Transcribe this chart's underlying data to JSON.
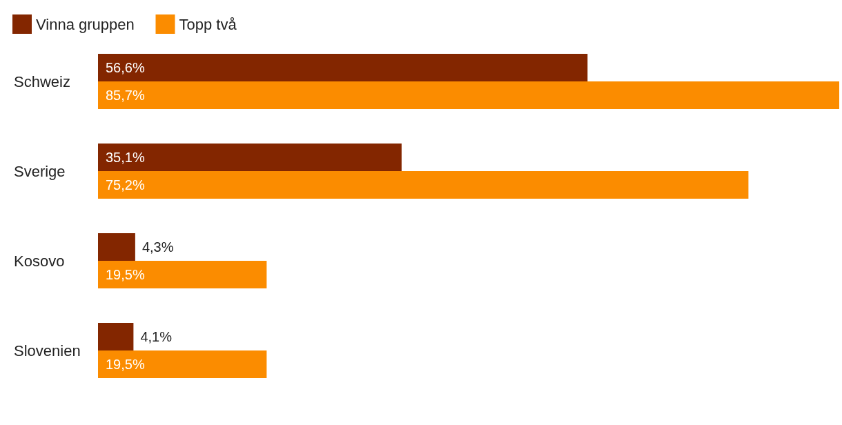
{
  "chart_data": {
    "type": "bar",
    "orientation": "horizontal",
    "categories": [
      "Schweiz",
      "Sverige",
      "Kosovo",
      "Slovenien"
    ],
    "series": [
      {
        "name": "Vinna gruppen",
        "color": "#832600",
        "values": [
          56.6,
          35.1,
          4.3,
          4.1
        ],
        "value_labels": [
          "56,6%",
          "35,1%",
          "4,3%",
          "4,1%"
        ]
      },
      {
        "name": "Topp två",
        "color": "#fb8c00",
        "values": [
          85.7,
          75.2,
          19.5,
          19.5
        ],
        "value_labels": [
          "85,7%",
          "75,2%",
          "19,5%",
          "19,5%"
        ]
      }
    ],
    "legend": "top left"
  }
}
